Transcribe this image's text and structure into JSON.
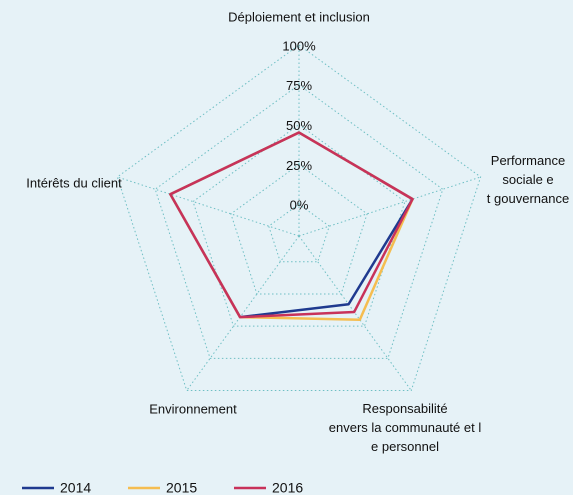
{
  "chart_data": {
    "type": "radar",
    "categories": [
      "Déploiement et inclusion",
      "Performance sociale et gouvernance",
      "Responsabilité envers la communauté et le personnel",
      "Environnement",
      "Intérêts du client"
    ],
    "series": [
      {
        "name": "2014",
        "color": "#1f3a8f",
        "values": [
          45,
          55,
          33,
          43,
          65
        ]
      },
      {
        "name": "2015",
        "color": "#f5bd50",
        "values": [
          45,
          55,
          45,
          43,
          65
        ]
      },
      {
        "name": "2016",
        "color": "#c8325a",
        "values": [
          45,
          55,
          39,
          43,
          65
        ]
      }
    ],
    "ylim": [
      -20,
      100
    ],
    "yticks": [
      {
        "value": 0,
        "label": "0%"
      },
      {
        "value": 25,
        "label": "25%"
      },
      {
        "value": 50,
        "label": "50%"
      },
      {
        "value": 75,
        "label": "75%"
      },
      {
        "value": 100,
        "label": "100%"
      }
    ],
    "grid": true,
    "legend": "bottom"
  }
}
